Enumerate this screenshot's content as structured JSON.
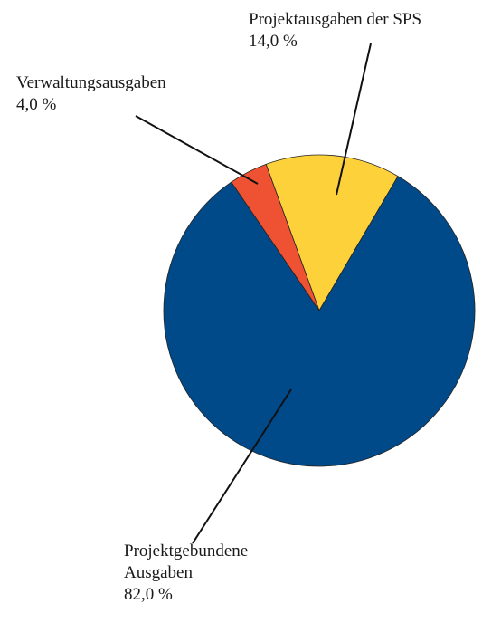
{
  "chart_data": {
    "type": "pie",
    "categories": [
      "Projektausgaben der SPS",
      "Projektgebundene Ausgaben",
      "Verwaltungsausgaben"
    ],
    "values": [
      14.0,
      82.0,
      4.0
    ],
    "value_labels": [
      "14,0 %",
      "82,0 %",
      "4,0 %"
    ],
    "colors": [
      "#fdd13a",
      "#004a8a",
      "#ef5133"
    ]
  }
}
